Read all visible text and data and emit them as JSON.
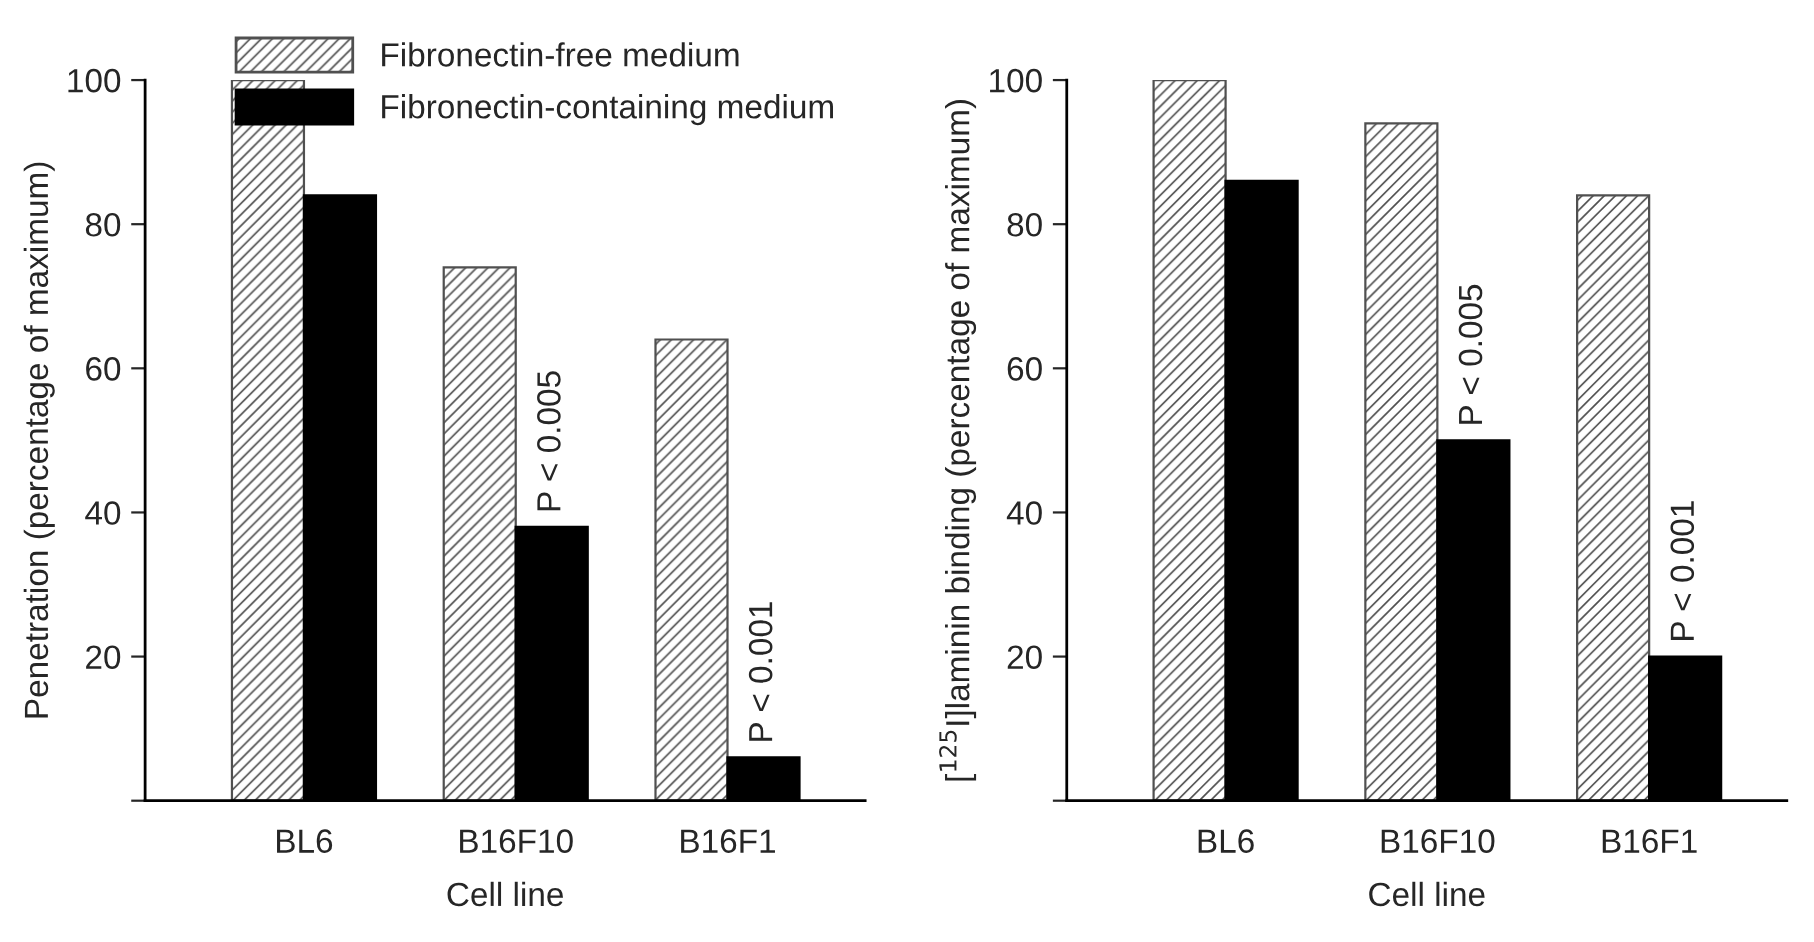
{
  "chart_data": [
    {
      "type": "bar",
      "categories": [
        "BL6",
        "B16F10",
        "B16F1"
      ],
      "xlabel": "Cell line",
      "ylabel": "Penetration (percentage of maximum)",
      "ylim": [
        0,
        100
      ],
      "yticks": [
        {
          "value": 0,
          "label": null
        },
        20,
        40,
        60,
        80,
        100
      ],
      "grid": false,
      "legend": "top right",
      "series": [
        {
          "name": "Fibronectin-free medium",
          "color": "#505050",
          "values": [
            100,
            74,
            64
          ]
        },
        {
          "name": "Fibronectin-containing medium",
          "color": "#000000",
          "values": [
            84,
            38,
            6
          ]
        }
      ],
      "annotations": [
        {
          "text": "P < 0.005",
          "x": "B16F10",
          "y": 38
        },
        {
          "text": "P < 0.001",
          "x": "B16F1",
          "y": 6
        }
      ]
    },
    {
      "type": "bar",
      "categories": [
        "BL6",
        "B16F10",
        "B16F1"
      ],
      "xlabel": "Cell line",
      "ylabel": "[$^{125}$I]laminin binding (percentage of maximum)",
      "ylim": [
        0,
        100
      ],
      "yticks": [
        {
          "value": 0,
          "label": null
        },
        20,
        40,
        60,
        80,
        100
      ],
      "grid": false,
      "legend": false,
      "series": [
        {
          "color": "#505050",
          "values": [
            100,
            94,
            84
          ]
        },
        {
          "color": "#000000",
          "values": [
            86,
            50,
            20
          ]
        }
      ],
      "annotations": [
        {
          "text": "P < 0.005",
          "x": "B16F10",
          "y": 50
        },
        {
          "text": "P < 0.001",
          "x": "B16F1",
          "y": 20
        }
      ]
    }
  ]
}
